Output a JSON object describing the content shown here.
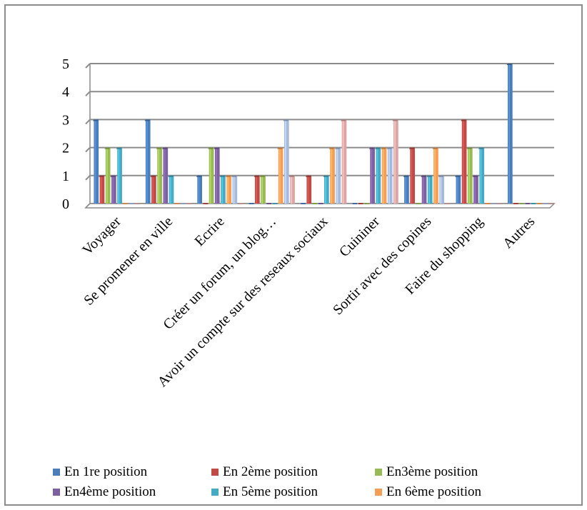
{
  "chart_data": {
    "type": "bar",
    "title": "",
    "xlabel": "",
    "ylabel": "",
    "ylim": [
      0,
      5
    ],
    "yticks": [
      "0",
      "1",
      "2",
      "3",
      "4",
      "5"
    ],
    "grid": true,
    "legend_position": "bottom",
    "categories": [
      "Voyager",
      "Se promener en ville",
      "Ecrire",
      "Créer un forum, un blog…",
      "Avoir un compte sur des reseaux sociaux",
      "Cuininer",
      "Sortir avec des copines",
      "Faire du shopping",
      "Autres"
    ],
    "series": [
      {
        "name": "En 1re position",
        "color": "#4a7ebb",
        "values": [
          3,
          3,
          1,
          0,
          0,
          0,
          1,
          1,
          5
        ]
      },
      {
        "name": "En 2ème position",
        "color": "#be4b48",
        "values": [
          1,
          1,
          0,
          1,
          1,
          0,
          2,
          3,
          0
        ]
      },
      {
        "name": "En3ème position",
        "color": "#98b954",
        "values": [
          2,
          2,
          2,
          1,
          0,
          0,
          0,
          2,
          0
        ]
      },
      {
        "name": "En4ème position",
        "color": "#7d60a0",
        "values": [
          1,
          2,
          2,
          0,
          0,
          2,
          1,
          1,
          0
        ]
      },
      {
        "name": "En 5ème position",
        "color": "#46aac5",
        "values": [
          2,
          1,
          1,
          0,
          1,
          2,
          1,
          2,
          0
        ]
      },
      {
        "name": "En 6ème position",
        "color": "#f59d56",
        "values": [
          0,
          0,
          1,
          2,
          2,
          2,
          2,
          0,
          0
        ]
      },
      {
        "name": "",
        "color": "#a5b9dc",
        "values": [
          0,
          0,
          1,
          3,
          2,
          2,
          1,
          0,
          0
        ]
      },
      {
        "name": "",
        "color": "#dca5a5",
        "values": [
          0,
          0,
          0,
          1,
          3,
          3,
          0,
          0,
          0
        ]
      }
    ]
  }
}
